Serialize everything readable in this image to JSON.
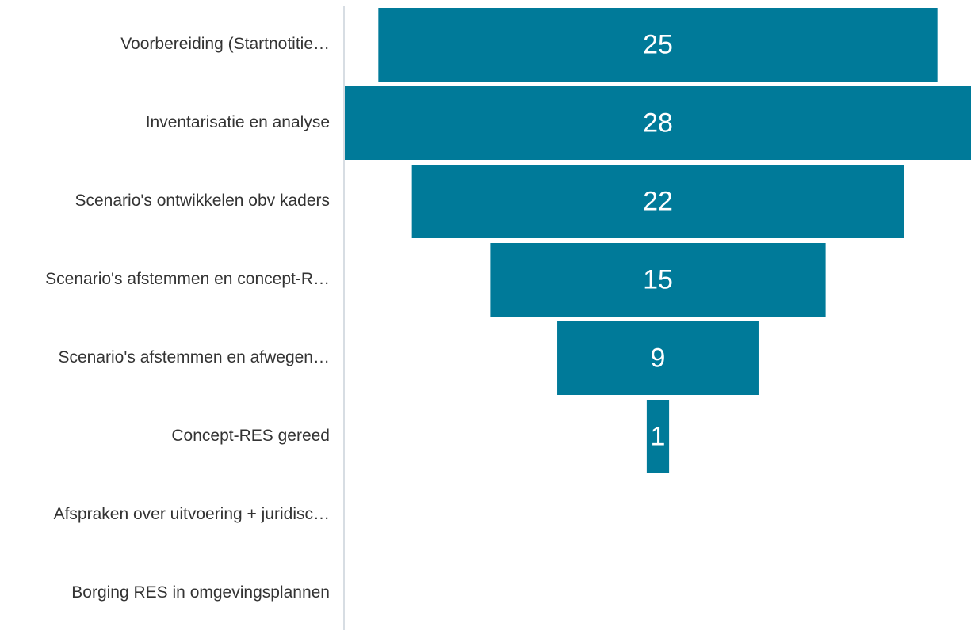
{
  "chart_data": {
    "type": "funnel",
    "categories": [
      "Voorbereiding (Startnotitie…",
      "Inventarisatie en analyse",
      "Scenario's ontwikkelen obv kaders",
      "Scenario's afstemmen en concept-R…",
      "Scenario's afstemmen en afwegen…",
      "Concept-RES gereed",
      "Afspraken over uitvoering + juridisc…",
      "Borging RES in omgevingsplannen"
    ],
    "values": [
      25,
      28,
      22,
      15,
      9,
      1,
      0,
      0
    ],
    "color": "#007a99"
  }
}
